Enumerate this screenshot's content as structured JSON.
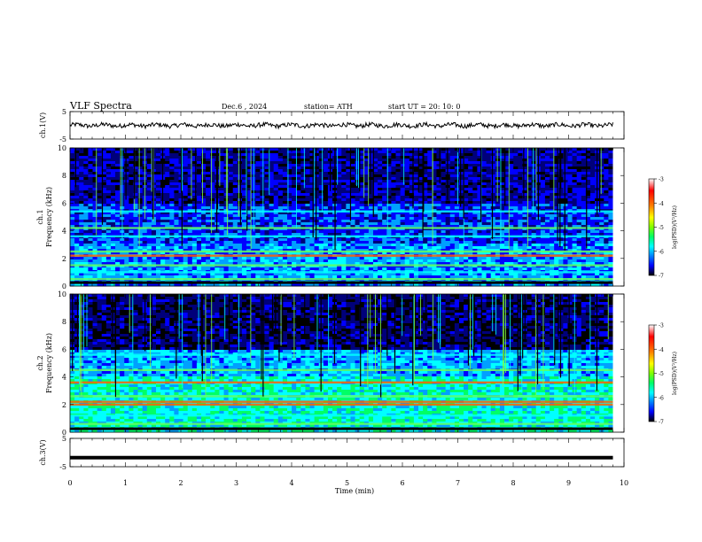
{
  "header": {
    "title": "VLF  Spectra",
    "date": "Dec.6  , 2024",
    "station": "station= ATH",
    "start": "start  UT  =   20: 10: 0"
  },
  "chart_data": [
    {
      "type": "line",
      "name": "ch1-waveform",
      "ylabel": "ch.1(V)",
      "ylim": [
        -5,
        5
      ],
      "yticks": [
        "5",
        "-5"
      ],
      "xlim": [
        0,
        10
      ]
    },
    {
      "type": "heatmap",
      "name": "ch1-spectrogram",
      "ylabel": "ch.1\nFrequency  (kHz)",
      "ylim": [
        0,
        10
      ],
      "yticks": [
        "0",
        "2",
        "4",
        "6",
        "8",
        "10"
      ],
      "xlim": [
        0,
        10
      ],
      "data_end_min": 9.8,
      "colorbar": {
        "label": "log(PSD)(V²/Hz)",
        "range": [
          -7,
          -3
        ],
        "ticks": [
          "-3",
          "-4",
          "-5",
          "-6",
          "-7"
        ]
      },
      "bands_khz": [
        0.5,
        1.0,
        1.5,
        2.2,
        2.5,
        3.6,
        4.2,
        5.4
      ]
    },
    {
      "type": "heatmap",
      "name": "ch2-spectrogram",
      "ylabel": "ch.2\nFrequency  (kHz)",
      "ylim": [
        0,
        10
      ],
      "yticks": [
        "0",
        "2",
        "4",
        "6",
        "8",
        "10"
      ],
      "xlim": [
        0,
        10
      ],
      "data_end_min": 9.8,
      "colorbar": {
        "label": "log(PSD)(V²/Hz)",
        "range": [
          -7,
          -3
        ],
        "ticks": [
          "-3",
          "-4",
          "-5",
          "-6",
          "-7"
        ]
      },
      "bands_khz": [
        0.6,
        1.2,
        2.0,
        2.2,
        2.6,
        3.6,
        4.5,
        5.6
      ]
    },
    {
      "type": "line",
      "name": "ch3-waveform",
      "ylabel": "ch.3(V)",
      "ylim": [
        -5,
        5
      ],
      "yticks": [
        "5",
        "-5"
      ],
      "xlim": [
        0,
        10
      ],
      "xlabel": "Time  (min)",
      "xticks": [
        "0",
        "1",
        "2",
        "3",
        "4",
        "5",
        "6",
        "7",
        "8",
        "9",
        "10"
      ],
      "level_v": -1.8
    }
  ],
  "colors": {
    "background": "#ffffff",
    "trace": "#000000",
    "colormap": [
      "#000000",
      "#00007a",
      "#0000ff",
      "#00a0ff",
      "#00ffff",
      "#00ff66",
      "#7fff00",
      "#ffff00",
      "#ff8000",
      "#ff0000",
      "#ffffff"
    ]
  }
}
